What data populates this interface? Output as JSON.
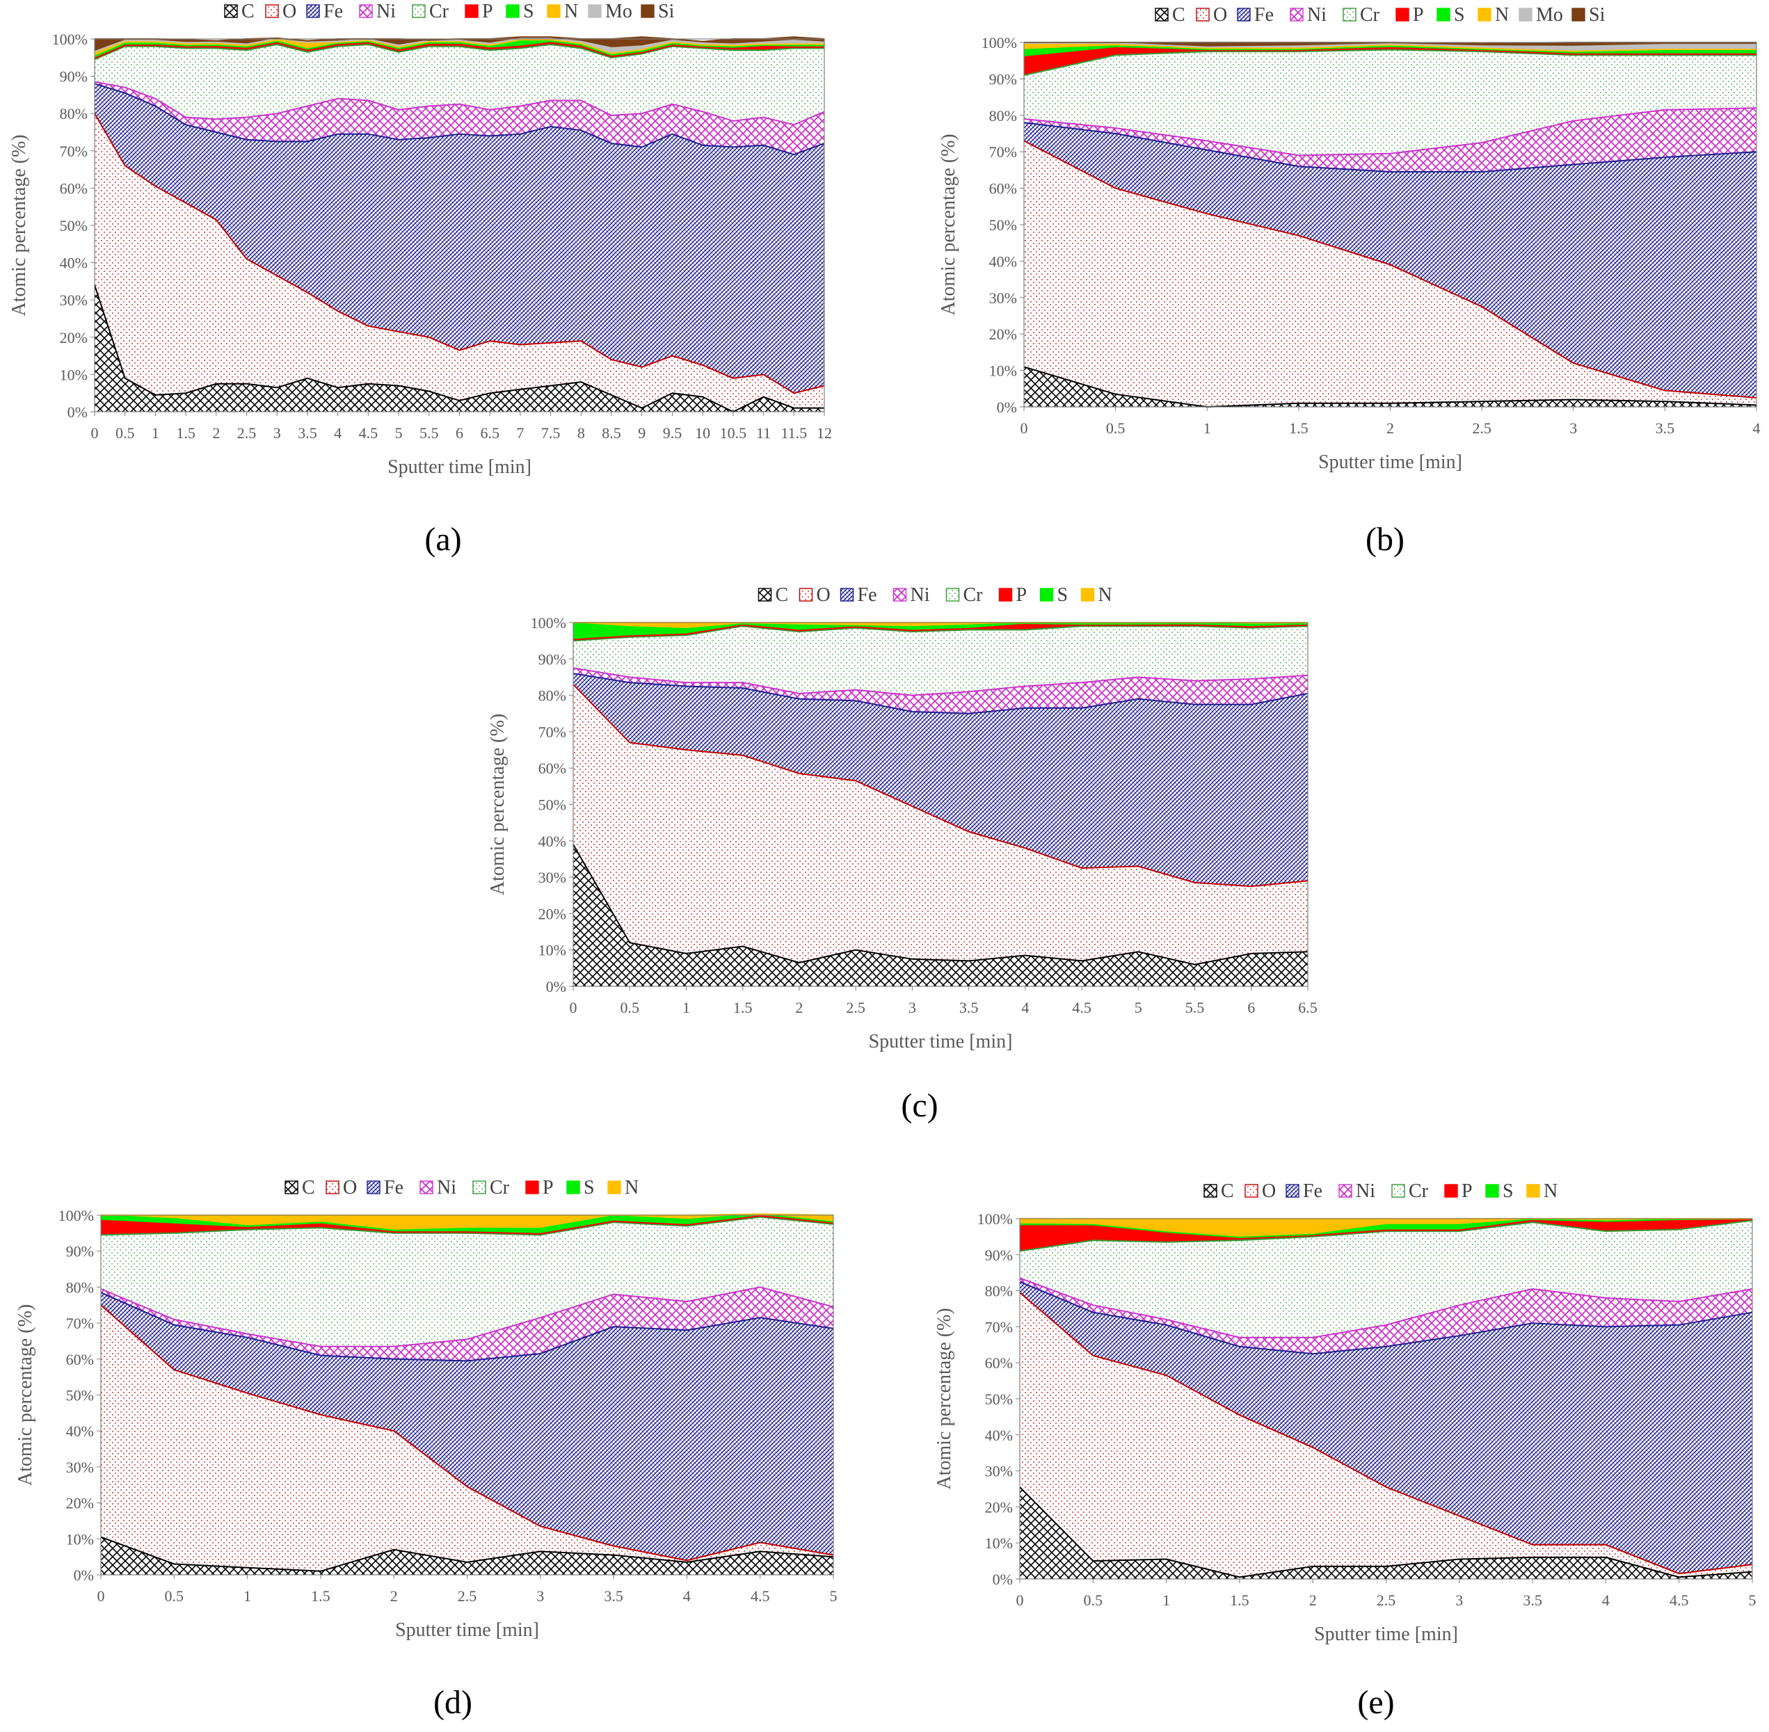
{
  "figure": {
    "panel_labels": [
      "(a)",
      "(b)",
      "(c)",
      "(d)",
      "(e)"
    ]
  },
  "colors": {
    "C": "#000000",
    "O": "#C00000",
    "Fe": "#1F1F8F",
    "Ni": "#CC33CC",
    "Cr": "#339933",
    "P": "#FF0000",
    "S": "#00EE00",
    "N": "#FFC000",
    "Mo": "#BFBFBF",
    "Si": "#7B3F14"
  },
  "chart_data": [
    {
      "type": "area",
      "stacked": true,
      "panel": "(a)",
      "xlabel": "Sputter time [min]",
      "ylabel": "Atomic percentage  (%)",
      "xlim": [
        0,
        12
      ],
      "ylim": [
        0,
        100
      ],
      "x_ticks": [
        0,
        0.5,
        1,
        1.5,
        2,
        2.5,
        3,
        3.5,
        4,
        4.5,
        5,
        5.5,
        6,
        6.5,
        7,
        7.5,
        8,
        8.5,
        9,
        9.5,
        10,
        10.5,
        11,
        11.5,
        12
      ],
      "y_ticks": [
        "0%",
        "10%",
        "20%",
        "30%",
        "40%",
        "50%",
        "60%",
        "70%",
        "80%",
        "90%",
        "100%"
      ],
      "legend_position": "top",
      "legend": [
        "C",
        "O",
        "Fe",
        "Ni",
        "Cr",
        "P",
        "S",
        "N",
        "Mo",
        "Si"
      ],
      "x": [
        0,
        0.5,
        1,
        1.5,
        2,
        2.5,
        3,
        3.5,
        4,
        4.5,
        5,
        5.5,
        6,
        6.5,
        7,
        7.5,
        8,
        8.5,
        9,
        9.5,
        10,
        10.5,
        11,
        11.5,
        12
      ],
      "series": [
        {
          "name": "C",
          "values": [
            34,
            9,
            4.5,
            5,
            7.5,
            7.5,
            6.5,
            9,
            6.5,
            7.5,
            7,
            5.5,
            3,
            5,
            6,
            7,
            8,
            4.5,
            1,
            5,
            4,
            0,
            4,
            1,
            1
          ]
        },
        {
          "name": "O",
          "values": [
            46,
            57,
            56,
            51,
            44,
            33.5,
            30,
            23,
            20.5,
            15.5,
            14.5,
            14.5,
            13.5,
            14,
            12,
            11.5,
            11,
            9.5,
            11,
            10,
            8.5,
            9,
            6,
            4,
            6
          ]
        },
        {
          "name": "Fe",
          "values": [
            8,
            19.5,
            21.5,
            21,
            23.5,
            32,
            36,
            40.5,
            47.5,
            51.5,
            51.5,
            53.5,
            58,
            55,
            56.5,
            58,
            56.5,
            58,
            59,
            59.5,
            59,
            62,
            61.5,
            64,
            65
          ]
        },
        {
          "name": "Ni",
          "values": [
            0.5,
            1.5,
            2,
            2,
            3.5,
            6,
            7.5,
            9.5,
            9.5,
            9,
            8,
            8.5,
            8,
            7,
            7.5,
            7,
            8,
            7.5,
            9,
            8,
            9,
            7,
            7.5,
            8,
            8.5
          ]
        },
        {
          "name": "Cr",
          "values": [
            6,
            11,
            14,
            18.5,
            19,
            18,
            18.5,
            14.5,
            14,
            15,
            15.5,
            16,
            15.5,
            16,
            15.5,
            15,
            14,
            15.5,
            16,
            15.5,
            17,
            19,
            18,
            20.5,
            17
          ]
        },
        {
          "name": "P",
          "values": [
            0.3,
            0.3,
            0.3,
            0.4,
            0.5,
            0.5,
            0.5,
            0.5,
            0.5,
            0.5,
            0.5,
            0.5,
            0.5,
            0.5,
            0.5,
            0.5,
            0.5,
            0.3,
            0.3,
            0.3,
            0.3,
            0.5,
            1,
            0.3,
            0.3
          ]
        },
        {
          "name": "S",
          "values": [
            0.5,
            0.5,
            0.5,
            0.3,
            0.3,
            0.3,
            0.3,
            0.3,
            0.3,
            0.3,
            0.5,
            0.5,
            0.5,
            0.5,
            1.5,
            0.5,
            0.5,
            0.5,
            0.5,
            0.5,
            0.3,
            0.3,
            0.3,
            0.5,
            0.5
          ]
        },
        {
          "name": "N",
          "values": [
            1,
            0.5,
            0.5,
            0.5,
            0.5,
            0.5,
            0.5,
            1.5,
            0.3,
            0.3,
            0.3,
            0.3,
            0.3,
            0.3,
            0.3,
            0.3,
            0.3,
            0.3,
            0.3,
            0.3,
            0.3,
            0.5,
            0.3,
            0.3,
            0.3
          ]
        },
        {
          "name": "Mo",
          "values": [
            0.3,
            0.3,
            0.3,
            0.3,
            0.3,
            0.3,
            0.3,
            0.3,
            0.3,
            0.3,
            0.5,
            0.3,
            0.3,
            0.5,
            0.3,
            0.3,
            0.5,
            1.5,
            1,
            0.5,
            0.5,
            0.3,
            0.5,
            1,
            0.5
          ]
        },
        {
          "name": "Si",
          "values": [
            3.4,
            0.4,
            0.4,
            0.8,
            0.4,
            1.4,
            0.1,
            0.4,
            0.6,
            0.1,
            1.7,
            0.1,
            0.4,
            1.2,
            0.4,
            0.4,
            0.7,
            2.4,
            2.4,
            0.4,
            0.4,
            1.4,
            0.9,
            0.9,
            0.9
          ]
        }
      ]
    },
    {
      "type": "area",
      "stacked": true,
      "panel": "(b)",
      "xlabel": "Sputter time [min]",
      "ylabel": "Atomic percentage  (%)",
      "xlim": [
        0,
        4
      ],
      "ylim": [
        0,
        100
      ],
      "x_ticks": [
        0,
        0.5,
        1,
        1.5,
        2,
        2.5,
        3,
        3.5,
        4
      ],
      "y_ticks": [
        "0%",
        "10%",
        "20%",
        "30%",
        "40%",
        "50%",
        "60%",
        "70%",
        "80%",
        "90%",
        "100%"
      ],
      "legend_position": "top",
      "legend": [
        "C",
        "O",
        "Fe",
        "Ni",
        "Cr",
        "P",
        "S",
        "N",
        "Mo",
        "Si"
      ],
      "x": [
        0,
        0.5,
        1,
        1.5,
        2,
        2.5,
        3,
        3.5,
        4
      ],
      "series": [
        {
          "name": "C",
          "values": [
            11,
            3.5,
            0,
            1,
            1,
            1.5,
            2,
            1.5,
            0.5
          ]
        },
        {
          "name": "O",
          "values": [
            62,
            56.5,
            53,
            46,
            38,
            26,
            10,
            3,
            2
          ]
        },
        {
          "name": "Fe",
          "values": [
            5,
            15,
            17.5,
            19,
            25.5,
            37,
            54.5,
            64,
            67.5
          ]
        },
        {
          "name": "Ni",
          "values": [
            1,
            1.5,
            2.5,
            3,
            5,
            8,
            12,
            13,
            12
          ]
        },
        {
          "name": "Cr",
          "values": [
            12,
            20,
            24.5,
            28.5,
            28.5,
            25,
            18,
            15,
            14.5
          ]
        },
        {
          "name": "P",
          "values": [
            5,
            2,
            0.3,
            0.3,
            0.5,
            0.3,
            0.3,
            0.3,
            0.3
          ]
        },
        {
          "name": "S",
          "values": [
            2,
            0.5,
            0.3,
            0.3,
            0.5,
            0.3,
            0.5,
            1,
            1
          ]
        },
        {
          "name": "N",
          "values": [
            1.5,
            0.5,
            0.3,
            0.3,
            0.3,
            0.3,
            0.3,
            0.3,
            0.3
          ]
        },
        {
          "name": "Mo",
          "values": [
            0.3,
            0.3,
            0.3,
            0.6,
            0.3,
            0.6,
            1.3,
            1.3,
            1.3
          ]
        },
        {
          "name": "Si",
          "values": [
            0.2,
            0.2,
            1.3,
            1.0,
            0.4,
            0.7,
            1.1,
            0.6,
            0.6
          ]
        }
      ]
    },
    {
      "type": "area",
      "stacked": true,
      "panel": "(c)",
      "xlabel": "Sputter time [min]",
      "ylabel": "Atomic percentage  (%)",
      "xlim": [
        0,
        6.5
      ],
      "ylim": [
        0,
        100
      ],
      "x_ticks": [
        0,
        0.5,
        1,
        1.5,
        2,
        2.5,
        3,
        3.5,
        4,
        4.5,
        5,
        5.5,
        6,
        6.5
      ],
      "y_ticks": [
        "0%",
        "10%",
        "20%",
        "30%",
        "40%",
        "50%",
        "60%",
        "70%",
        "80%",
        "90%",
        "100%"
      ],
      "legend_position": "top",
      "legend": [
        "C",
        "O",
        "Fe",
        "Ni",
        "Cr",
        "P",
        "S",
        "N"
      ],
      "x": [
        0,
        0.5,
        1,
        1.5,
        2,
        2.5,
        3,
        3.5,
        4,
        4.5,
        5,
        5.5,
        6,
        6.5
      ],
      "series": [
        {
          "name": "C",
          "values": [
            39,
            12,
            9,
            11,
            6.5,
            10,
            7.5,
            7,
            8.5,
            7,
            9.5,
            6,
            9,
            9.5
          ]
        },
        {
          "name": "O",
          "values": [
            44,
            55,
            56,
            52.5,
            52,
            46.5,
            42,
            35.5,
            29.5,
            25.5,
            23.5,
            22.5,
            18.5,
            19.5
          ]
        },
        {
          "name": "Fe",
          "values": [
            3,
            16.5,
            17.5,
            18.5,
            20.5,
            22,
            26,
            32.5,
            38.5,
            44,
            46,
            49,
            50,
            51.5
          ]
        },
        {
          "name": "Ni",
          "values": [
            1.5,
            1.5,
            1,
            1.5,
            1.5,
            3,
            4.5,
            6,
            6,
            7,
            6,
            6.5,
            7,
            5
          ]
        },
        {
          "name": "Cr",
          "values": [
            7.5,
            11,
            13,
            15.5,
            17,
            17,
            17.5,
            17,
            15.5,
            15.5,
            14,
            15,
            14,
            13.5
          ]
        },
        {
          "name": "P",
          "values": [
            0.3,
            0.3,
            0.3,
            0.3,
            0.3,
            0.3,
            0.3,
            0.3,
            1.5,
            0.3,
            0.3,
            0.3,
            0.3,
            0.3
          ]
        },
        {
          "name": "S",
          "values": [
            4.5,
            2.5,
            1.5,
            0.3,
            1.5,
            0.3,
            1,
            1,
            0.3,
            0.3,
            0.3,
            0.5,
            0.7,
            0.3
          ]
        },
        {
          "name": "N",
          "values": [
            0.2,
            1.2,
            1.7,
            0.4,
            0.7,
            0.9,
            1.2,
            0.7,
            0.2,
            0.4,
            0.4,
            0.2,
            0.5,
            0.4
          ]
        }
      ]
    },
    {
      "type": "area",
      "stacked": true,
      "panel": "(d)",
      "xlabel": "Sputter time [min]",
      "ylabel": "Atomic percentage  (%)",
      "xlim": [
        0,
        5
      ],
      "ylim": [
        0,
        100
      ],
      "x_ticks": [
        0,
        0.5,
        1,
        1.5,
        2,
        2.5,
        3,
        3.5,
        4,
        4.5,
        5
      ],
      "y_ticks": [
        "0%",
        "10%",
        "20%",
        "30%",
        "40%",
        "50%",
        "60%",
        "70%",
        "80%",
        "90%",
        "100%"
      ],
      "legend_position": "top",
      "legend": [
        "C",
        "O",
        "Fe",
        "Ni",
        "Cr",
        "P",
        "S",
        "N"
      ],
      "x": [
        0,
        0.5,
        1,
        1.5,
        2,
        2.5,
        3,
        3.5,
        4,
        4.5,
        5
      ],
      "series": [
        {
          "name": "C",
          "values": [
            10.5,
            3,
            2,
            1,
            7,
            3.5,
            6.5,
            5.5,
            3.5,
            6.5,
            5
          ]
        },
        {
          "name": "O",
          "values": [
            64.5,
            54,
            48.5,
            43.5,
            33,
            21,
            7,
            2.5,
            0.5,
            2.5,
            0.5
          ]
        },
        {
          "name": "Fe",
          "values": [
            3.5,
            12.5,
            15.5,
            16.5,
            20,
            35,
            48,
            61,
            64,
            62.5,
            63
          ]
        },
        {
          "name": "Ni",
          "values": [
            1,
            1.5,
            1,
            2.5,
            3.5,
            6,
            10,
            9,
            8,
            8.5,
            6
          ]
        },
        {
          "name": "Cr",
          "values": [
            15,
            24,
            29,
            33,
            31.5,
            29.5,
            23,
            20,
            21,
            19.5,
            23
          ]
        },
        {
          "name": "P",
          "values": [
            4,
            2.5,
            0.5,
            1,
            0.3,
            0.3,
            0.3,
            0.3,
            0.3,
            0.3,
            0.3
          ]
        },
        {
          "name": "S",
          "values": [
            1.5,
            1.5,
            0.5,
            0.5,
            0.5,
            1,
            1.5,
            1.5,
            1.5,
            0.5,
            0.3
          ]
        },
        {
          "name": "N",
          "values": [
            0,
            1,
            3,
            2,
            4.2,
            3.7,
            3.7,
            0.2,
            1.2,
            0,
            1.9
          ]
        }
      ]
    },
    {
      "type": "area",
      "stacked": true,
      "panel": "(e)",
      "xlabel": "Sputter time [min]",
      "ylabel": "Atomic percentage  (%)",
      "xlim": [
        0,
        5
      ],
      "ylim": [
        0,
        100
      ],
      "x_ticks": [
        0,
        0.5,
        1,
        1.5,
        2,
        2.5,
        3,
        3.5,
        4,
        4.5,
        5
      ],
      "y_ticks": [
        "0%",
        "10%",
        "20%",
        "30%",
        "40%",
        "50%",
        "60%",
        "70%",
        "80%",
        "90%",
        "100%"
      ],
      "legend_position": "top",
      "legend": [
        "C",
        "O",
        "Fe",
        "Ni",
        "Cr",
        "P",
        "S",
        "N"
      ],
      "x": [
        0,
        0.5,
        1,
        1.5,
        2,
        2.5,
        3,
        3.5,
        4,
        4.5,
        5
      ],
      "series": [
        {
          "name": "C",
          "values": [
            25.5,
            5,
            5.5,
            0.5,
            3.5,
            3.5,
            5.5,
            6,
            6,
            0.5,
            2
          ]
        },
        {
          "name": "O",
          "values": [
            54,
            57,
            51,
            45,
            33,
            22,
            12,
            3.5,
            3.5,
            1,
            2
          ]
        },
        {
          "name": "Fe",
          "values": [
            3,
            12,
            14,
            19,
            26,
            39,
            50,
            61.5,
            60.5,
            69,
            70
          ]
        },
        {
          "name": "Ni",
          "values": [
            1,
            2,
            1.5,
            2.5,
            4.5,
            6,
            8.5,
            9.5,
            8,
            6.5,
            6.5
          ]
        },
        {
          "name": "Cr",
          "values": [
            7.5,
            18,
            21.5,
            27,
            28,
            26,
            20.5,
            18.5,
            18.5,
            20,
            19
          ]
        },
        {
          "name": "P",
          "values": [
            7,
            4,
            2.5,
            0.5,
            0.3,
            0.3,
            0.3,
            0.5,
            2.5,
            2.5,
            0.3
          ]
        },
        {
          "name": "S",
          "values": [
            0.5,
            0.3,
            0.3,
            0.3,
            0.3,
            1.5,
            1.5,
            0.3,
            0.3,
            0.3,
            0.2
          ]
        },
        {
          "name": "N",
          "values": [
            1.5,
            1.7,
            3.7,
            5.2,
            4.4,
            1.7,
            1.7,
            0.2,
            0.7,
            0.2,
            0
          ]
        }
      ]
    }
  ]
}
